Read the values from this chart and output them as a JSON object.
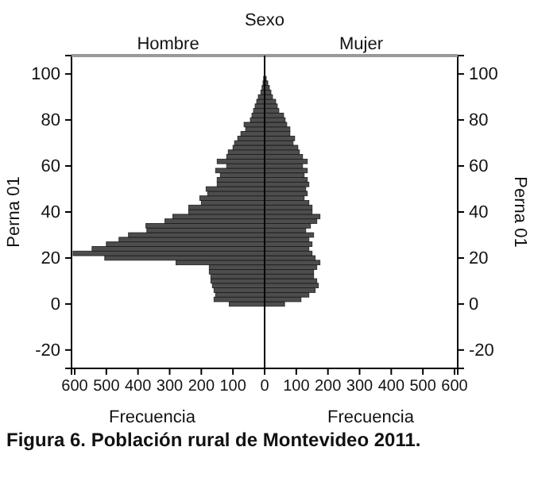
{
  "chart_data": [
    {
      "type": "histogram",
      "orientation": "horizontal",
      "title": "Hombre",
      "xlabel": "Frecuencia",
      "ylabel": "Perna 01",
      "color": "#4d4d4d",
      "annotations": [
        "Sexo",
        "Figura 6.  Población rural de Montevideo 2011."
      ],
      "bins": [
        -1,
        1,
        3,
        5,
        7,
        9,
        11,
        13,
        15,
        17,
        19,
        21,
        23,
        25,
        27,
        29,
        31,
        33,
        35,
        37,
        39,
        41,
        43,
        45,
        47,
        49,
        51,
        53,
        55,
        57,
        59,
        61,
        63,
        65,
        67,
        69,
        71,
        73,
        75,
        77,
        79,
        81,
        83,
        85,
        87,
        89,
        91,
        93,
        95,
        97,
        99
      ],
      "values": [
        112,
        160,
        155,
        160,
        165,
        170,
        170,
        175,
        175,
        280,
        505,
        605,
        545,
        500,
        460,
        430,
        372,
        375,
        315,
        290,
        240,
        240,
        200,
        205,
        180,
        185,
        150,
        150,
        140,
        155,
        120,
        150,
        120,
        115,
        100,
        95,
        85,
        75,
        60,
        65,
        45,
        40,
        35,
        30,
        25,
        20,
        12,
        8,
        5,
        3
      ],
      "xlim": [
        610,
        0
      ],
      "xticks": [
        600,
        500,
        400,
        300,
        200,
        100,
        0
      ],
      "ylim": [
        -28,
        108
      ],
      "yticks": [
        -20,
        0,
        20,
        40,
        60,
        80,
        100
      ]
    },
    {
      "type": "histogram",
      "orientation": "horizontal",
      "title": "Mujer",
      "xlabel": "Frecuencia",
      "ylabel": "Perna 01",
      "color": "#4d4d4d",
      "bins": [
        -1,
        1,
        3,
        5,
        7,
        9,
        11,
        13,
        15,
        17,
        19,
        21,
        23,
        25,
        27,
        29,
        31,
        33,
        35,
        37,
        39,
        41,
        43,
        45,
        47,
        49,
        51,
        53,
        55,
        57,
        59,
        61,
        63,
        65,
        67,
        69,
        71,
        73,
        75,
        77,
        79,
        81,
        83,
        85,
        87,
        89,
        91,
        93,
        95,
        97,
        99
      ],
      "values": [
        63,
        115,
        140,
        160,
        170,
        165,
        155,
        155,
        165,
        175,
        160,
        150,
        140,
        150,
        140,
        155,
        130,
        145,
        165,
        175,
        150,
        150,
        140,
        125,
        135,
        130,
        140,
        135,
        125,
        135,
        120,
        135,
        120,
        110,
        105,
        90,
        95,
        80,
        80,
        70,
        65,
        60,
        45,
        40,
        35,
        25,
        20,
        15,
        10,
        5
      ],
      "xlim": [
        0,
        610
      ],
      "xticks": [
        {
          "value": 0,
          "label": null
        },
        100,
        200,
        300,
        400,
        500,
        600
      ],
      "ylim": [
        -28,
        108
      ],
      "yticks": [
        -20,
        0,
        20,
        40,
        60,
        80,
        100
      ]
    }
  ]
}
